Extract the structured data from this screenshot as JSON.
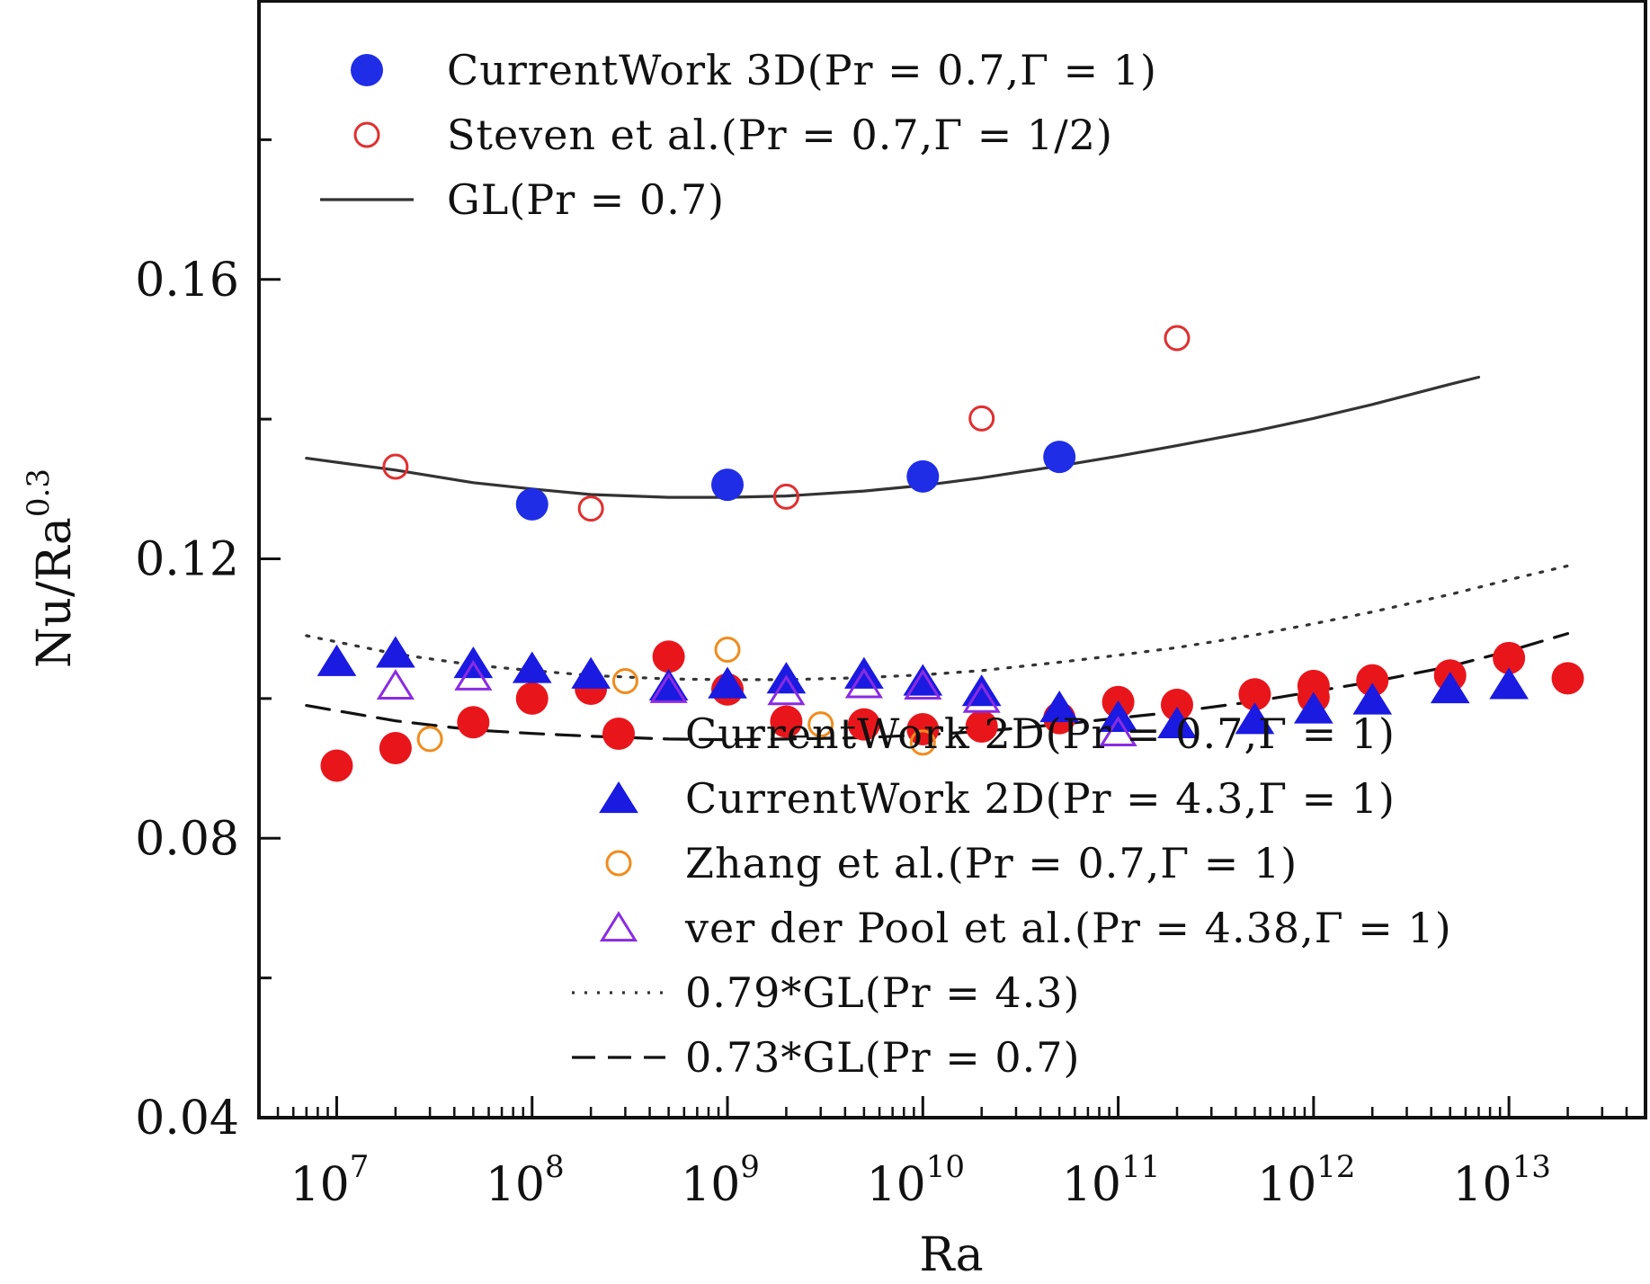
{
  "chart_data": {
    "type": "scatter",
    "title": "",
    "xlabel": "Ra",
    "ylabel": "Nu/Ra",
    "ylabel_superscript": "0.3",
    "x_scale": "log",
    "xlim": [
      4000000.0,
      50000000000000.0
    ],
    "ylim": [
      0.04,
      0.2
    ],
    "y_ticks": [
      0.04,
      0.08,
      0.12,
      0.16
    ],
    "y_tick_labels": [
      "0.04",
      "0.08",
      "0.12",
      "0.16"
    ],
    "x_ticks": [
      10000000.0,
      100000000.0,
      1000000000.0,
      10000000000.0,
      100000000000.0,
      1000000000000.0,
      10000000000000.0
    ],
    "x_tick_labels": [
      {
        "base": "10",
        "exp": "7"
      },
      {
        "base": "10",
        "exp": "8"
      },
      {
        "base": "10",
        "exp": "9"
      },
      {
        "base": "10",
        "exp": "10"
      },
      {
        "base": "10",
        "exp": "11"
      },
      {
        "base": "10",
        "exp": "12"
      },
      {
        "base": "10",
        "exp": "13"
      }
    ],
    "grid": false,
    "legend_top": [
      {
        "series": "s_3d",
        "label": "CurrentWork 3D(Pr = 0.7,Γ = 1)"
      },
      {
        "series": "s_steven",
        "label": "Steven et al.(Pr = 0.7,Γ = 1/2)"
      },
      {
        "series": "gl",
        "label": "GL(Pr = 0.7)"
      }
    ],
    "legend_bottom": [
      {
        "series": "s_2d07",
        "label": "CurrentWork 2D(Pr = 0.7,Γ = 1)"
      },
      {
        "series": "s_2d43",
        "label": "CurrentWork 2D(Pr = 4.3,Γ = 1)"
      },
      {
        "series": "s_zhang",
        "label": "Zhang et al.(Pr = 0.7,Γ = 1)"
      },
      {
        "series": "s_pool",
        "label": "ver der Pool et al.(Pr = 4.38,Γ = 1)"
      },
      {
        "series": "gl079",
        "label": "0.79*GL(Pr = 4.3)"
      },
      {
        "series": "gl073",
        "label": "0.73*GL(Pr = 0.7)"
      }
    ],
    "series": [
      {
        "id": "s_3d",
        "marker": "filled-circle",
        "color": "#1f2de6",
        "x": [
          100000000.0,
          1000000000.0,
          10000000000.0,
          50000000000.0
        ],
        "y": [
          0.1278,
          0.1306,
          0.1318,
          0.1346
        ]
      },
      {
        "id": "s_steven",
        "marker": "open-circle",
        "color": "#e03030",
        "x": [
          20000000.0,
          200000000.0,
          2000000000.0,
          20000000000.0,
          200000000000.0
        ],
        "y": [
          0.1332,
          0.1272,
          0.1289,
          0.1401,
          0.1516
        ]
      },
      {
        "id": "s_2d07",
        "marker": "filled-circle",
        "color": "#e8161b",
        "x": [
          10000000.0,
          20000000.0,
          50000000.0,
          100000000.0,
          200000000.0,
          500000000.0,
          1000000000.0,
          2000000000.0,
          5000000000.0,
          10000000000.0,
          20000000000.0,
          50000000000.0,
          100000000000.0,
          200000000000.0,
          500000000000.0,
          1000000000000.0,
          1000000000000.0,
          2000000000000.0,
          5000000000000.0,
          10000000000000.0,
          20000000000000.0
        ],
        "y": [
          0.0904,
          0.0929,
          0.0966,
          0.1,
          0.1014,
          0.106,
          0.1013,
          0.0967,
          0.0963,
          0.0956,
          0.096,
          0.0972,
          0.0995,
          0.0991,
          0.1006,
          0.1002,
          0.1018,
          0.1026,
          0.1033,
          0.1058,
          0.1029
        ]
      },
      {
        "id": "s_2d43",
        "marker": "filled-triangle",
        "color": "#1a1ae0",
        "x": [
          10000000.0,
          20000000.0,
          50000000.0,
          100000000.0,
          200000000.0,
          500000000.0,
          1000000000.0,
          2000000000.0,
          5000000000.0,
          10000000000.0,
          20000000000.0,
          50000000000.0,
          100000000000.0,
          200000000000.0,
          500000000000.0,
          1000000000000.0,
          2000000000000.0,
          5000000000000.0,
          10000000000000.0
        ],
        "y": [
          0.1053,
          0.1065,
          0.105,
          0.1043,
          0.1035,
          0.1018,
          0.1021,
          0.1028,
          0.1035,
          0.1025,
          0.101,
          0.0987,
          0.0973,
          0.0964,
          0.097,
          0.0985,
          0.0998,
          0.1014,
          0.102
        ]
      },
      {
        "id": "s_zhang",
        "marker": "open-circle",
        "color": "#f08c1e",
        "x": [
          30000000.0,
          300000000.0,
          1000000000.0,
          3000000000.0,
          10000000000.0
        ],
        "y": [
          0.0942,
          0.1025,
          0.107,
          0.0963,
          0.0937
        ]
      },
      {
        "id": "s_pool",
        "marker": "open-triangle",
        "color": "#8a2be2",
        "x": [
          20000000.0,
          50000000.0,
          500000000.0,
          2000000000.0,
          5000000000.0,
          10000000000.0,
          20000000000.0,
          100000000000.0
        ],
        "y": [
          0.1018,
          0.1031,
          0.1013,
          0.101,
          0.102,
          0.1018,
          0.0999,
          0.0951
        ]
      }
    ],
    "curves": [
      {
        "id": "gl",
        "style": "solid",
        "color": "#333333",
        "x": [
          7000000.0,
          20000000.0,
          50000000.0,
          100000000.0,
          200000000.0,
          500000000.0,
          1000000000.0,
          2000000000.0,
          5000000000.0,
          10000000000.0,
          20000000000.0,
          50000000000.0,
          100000000000.0,
          200000000000.0,
          500000000000.0,
          1000000000000.0,
          2000000000000.0,
          5000000000000.0,
          7000000000000.0
        ],
        "y": [
          0.1344,
          0.1327,
          0.1309,
          0.13,
          0.1292,
          0.1288,
          0.1288,
          0.129,
          0.1297,
          0.1305,
          0.1316,
          0.1333,
          0.1347,
          0.1362,
          0.1383,
          0.1401,
          0.1421,
          0.145,
          0.146
        ]
      },
      {
        "id": "gl079",
        "style": "dotted",
        "color": "#333333",
        "x": [
          7000000.0,
          20000000.0,
          50000000.0,
          100000000.0,
          200000000.0,
          500000000.0,
          1000000000.0,
          2000000000.0,
          5000000000.0,
          10000000000.0,
          20000000000.0,
          50000000000.0,
          100000000000.0,
          200000000000.0,
          500000000000.0,
          1000000000000.0,
          2000000000000.0,
          5000000000000.0,
          10000000000000.0,
          20000000000000.0
        ],
        "y": [
          0.109,
          0.1064,
          0.1048,
          0.104,
          0.1033,
          0.1028,
          0.1027,
          0.1027,
          0.103,
          0.1034,
          0.104,
          0.1052,
          0.1062,
          0.1073,
          0.1091,
          0.1107,
          0.1124,
          0.1149,
          0.117,
          0.119
        ]
      },
      {
        "id": "gl073",
        "style": "dashed",
        "color": "#111111",
        "x": [
          7000000.0,
          20000000.0,
          50000000.0,
          100000000.0,
          200000000.0,
          500000000.0,
          1000000000.0,
          2000000000.0,
          5000000000.0,
          10000000000.0,
          20000000000.0,
          50000000000.0,
          100000000000.0,
          200000000000.0,
          500000000000.0,
          1000000000000.0,
          2000000000000.0,
          5000000000000.0,
          10000000000000.0,
          20000000000000.0
        ],
        "y": [
          0.099,
          0.0968,
          0.0955,
          0.095,
          0.0946,
          0.0942,
          0.0941,
          0.0942,
          0.0944,
          0.0948,
          0.0953,
          0.0963,
          0.0972,
          0.0981,
          0.0996,
          0.101,
          0.1024,
          0.1046,
          0.1068,
          0.1093
        ]
      }
    ]
  }
}
